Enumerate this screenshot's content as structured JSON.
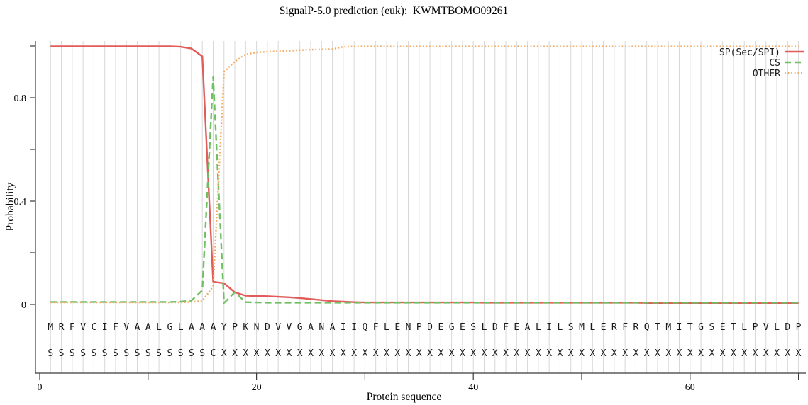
{
  "title": "SignalP-5.0 prediction (euk):  KWMTBOMO09261",
  "colors": {
    "sp_line": "#e25c5c",
    "cs_line": "#70bf62",
    "other_line": "#f3ab63",
    "gridline": "#d7d7d7",
    "axis": "#3a3a3a",
    "letters": "#1a1a1a"
  },
  "chart_data": {
    "type": "line",
    "title": "SignalP-5.0 prediction (euk):  KWMTBOMO09261",
    "xlabel": "Protein sequence",
    "ylabel": "Probability",
    "xlim": [
      0,
      71
    ],
    "ylim": [
      0,
      1.02
    ],
    "x_range": [
      1,
      70
    ],
    "x_tick_values": [
      0,
      20,
      40,
      60
    ],
    "x_tick_labels": [
      "0",
      "20",
      "40",
      "60"
    ],
    "x_minor_ticks": [
      10,
      30,
      50,
      70
    ],
    "y_tick_values": [
      0,
      0.4,
      0.8
    ],
    "y_tick_labels": [
      "0",
      "0.4",
      "0.8"
    ],
    "y_minor_ticks": [
      0.2,
      0.6,
      1.0
    ],
    "grid": "vertical gridline at every residue position 1-70",
    "legend_position": "top-right",
    "residues": "MRFVCIFVAALGLAAAYPKNDVVGANAIIQFLENPDEGESLDFEALILSMLERFRQTMITGSETLPVLDP",
    "annotation": "SSSSSSSSSSSSSSSCXXXXXXXXXXXXXXXXXXXXXXXXXXXXXXXXXXXXXXXXXXXXXXXXXXXXXX",
    "series": [
      {
        "name": "SP(Sec/SPI)",
        "color": "#e25c5c",
        "style": "solid",
        "values": [
          0.999,
          0.999,
          0.999,
          0.999,
          0.999,
          0.999,
          0.999,
          0.999,
          0.999,
          0.999,
          0.999,
          0.999,
          0.997,
          0.99,
          0.96,
          0.088,
          0.082,
          0.047,
          0.034,
          0.033,
          0.032,
          0.03,
          0.028,
          0.025,
          0.021,
          0.017,
          0.013,
          0.011,
          0.009,
          0.008,
          0.008,
          0.008,
          0.008,
          0.008,
          0.008,
          0.008,
          0.008,
          0.008,
          0.008,
          0.008,
          0.007,
          0.007,
          0.007,
          0.007,
          0.007,
          0.007,
          0.007,
          0.007,
          0.007,
          0.007,
          0.007,
          0.007,
          0.007,
          0.007,
          0.007,
          0.006,
          0.006,
          0.006,
          0.006,
          0.006,
          0.006,
          0.006,
          0.006,
          0.006,
          0.006,
          0.006,
          0.006,
          0.006,
          0.006,
          0.006
        ]
      },
      {
        "name": "CS",
        "color": "#70bf62",
        "style": "dashed",
        "values": [
          0.01,
          0.01,
          0.01,
          0.01,
          0.01,
          0.01,
          0.01,
          0.01,
          0.01,
          0.01,
          0.01,
          0.01,
          0.011,
          0.015,
          0.055,
          0.88,
          0.006,
          0.047,
          0.009,
          0.008,
          0.007,
          0.007,
          0.007,
          0.007,
          0.007,
          0.007,
          0.007,
          0.007,
          0.007,
          0.007,
          0.007,
          0.007,
          0.007,
          0.007,
          0.007,
          0.007,
          0.007,
          0.007,
          0.007,
          0.007,
          0.007,
          0.007,
          0.007,
          0.007,
          0.007,
          0.007,
          0.007,
          0.007,
          0.007,
          0.007,
          0.007,
          0.007,
          0.007,
          0.007,
          0.007,
          0.007,
          0.007,
          0.007,
          0.007,
          0.007,
          0.007,
          0.007,
          0.007,
          0.007,
          0.007,
          0.007,
          0.007,
          0.007,
          0.007,
          0.007
        ]
      },
      {
        "name": "OTHER",
        "color": "#f3ab63",
        "style": "dotted",
        "values": [
          0.008,
          0.008,
          0.008,
          0.008,
          0.008,
          0.008,
          0.008,
          0.008,
          0.008,
          0.008,
          0.008,
          0.008,
          0.008,
          0.01,
          0.014,
          0.07,
          0.9,
          0.94,
          0.968,
          0.975,
          0.978,
          0.98,
          0.982,
          0.984,
          0.986,
          0.987,
          0.988,
          0.997,
          0.998,
          0.998,
          0.998,
          0.998,
          0.998,
          0.998,
          0.998,
          0.998,
          0.998,
          0.998,
          0.998,
          0.998,
          0.998,
          0.998,
          0.998,
          0.998,
          0.998,
          0.998,
          0.998,
          0.998,
          0.998,
          0.998,
          0.998,
          0.998,
          0.998,
          0.998,
          0.998,
          0.998,
          0.998,
          0.998,
          0.998,
          0.998,
          0.998,
          0.998,
          0.998,
          0.998,
          0.998,
          0.998,
          0.998,
          0.998,
          0.998,
          0.998
        ]
      }
    ]
  }
}
